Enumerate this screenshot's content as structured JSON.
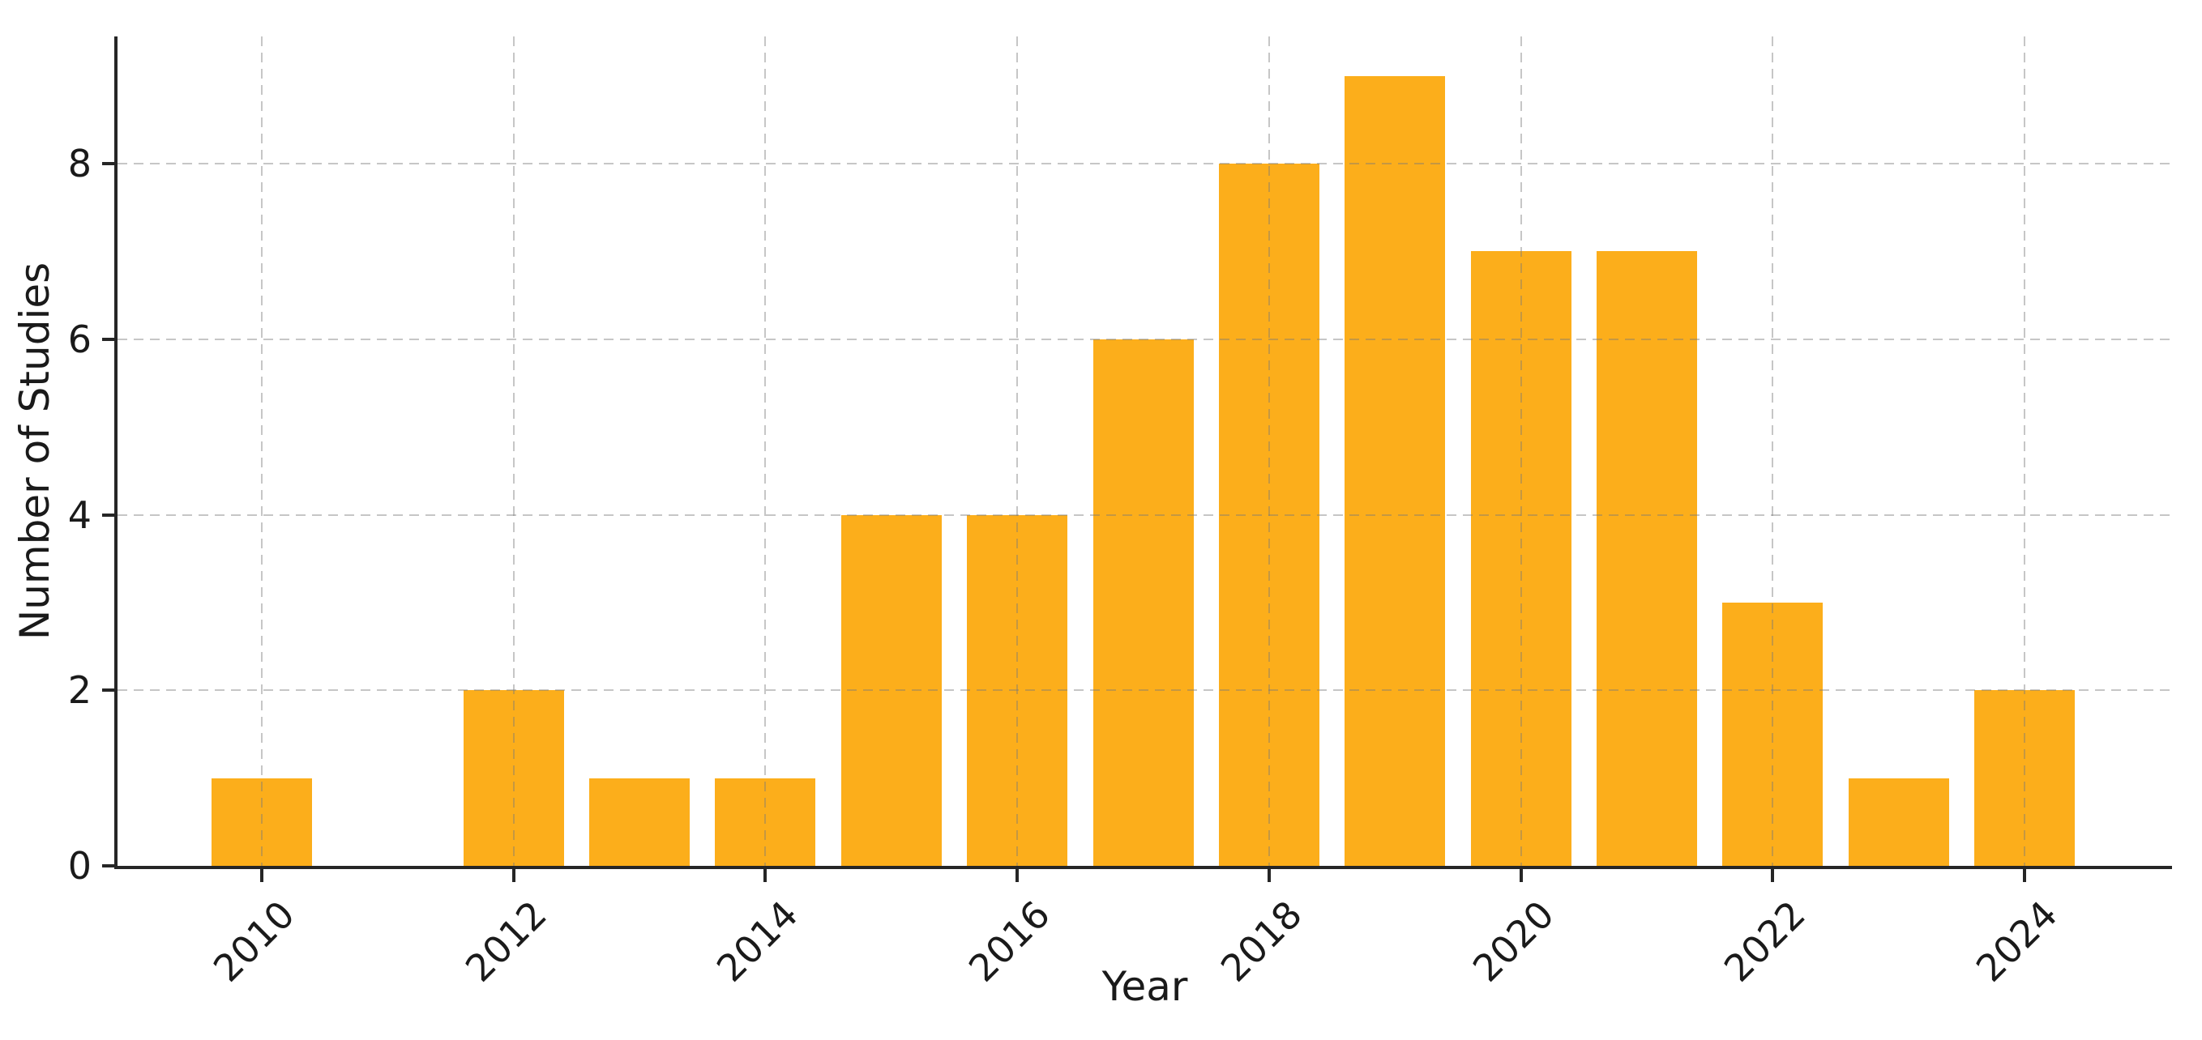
{
  "chart_data": {
    "type": "bar",
    "title": "",
    "xlabel": "Year",
    "ylabel": "Number of Studies",
    "categories": [
      2010,
      2011,
      2012,
      2013,
      2014,
      2015,
      2016,
      2017,
      2018,
      2019,
      2020,
      2021,
      2022,
      2023,
      2024
    ],
    "values": [
      1,
      0,
      2,
      1,
      1,
      4,
      4,
      6,
      8,
      9,
      7,
      7,
      3,
      1,
      2
    ],
    "xticks": [
      "2010",
      "2012",
      "2014",
      "2016",
      "2018",
      "2020",
      "2022",
      "2024"
    ],
    "xtick_years": [
      2010,
      2012,
      2014,
      2016,
      2018,
      2020,
      2022,
      2024
    ],
    "yticks": [
      "0",
      "2",
      "4",
      "6",
      "8"
    ],
    "ytick_values": [
      0,
      2,
      4,
      6,
      8
    ],
    "ylim": [
      0,
      9.45
    ],
    "grid": true,
    "grid_style": "dashed",
    "legend_position": "none",
    "bar_color": "#FCAE1B",
    "grid_color_rgba": "rgba(120,120,120,0.42)",
    "axis_color": "#262626",
    "text_color": "#1a1a1a",
    "background_color": "#ffffff",
    "x_labels_rotation_deg": 45
  }
}
